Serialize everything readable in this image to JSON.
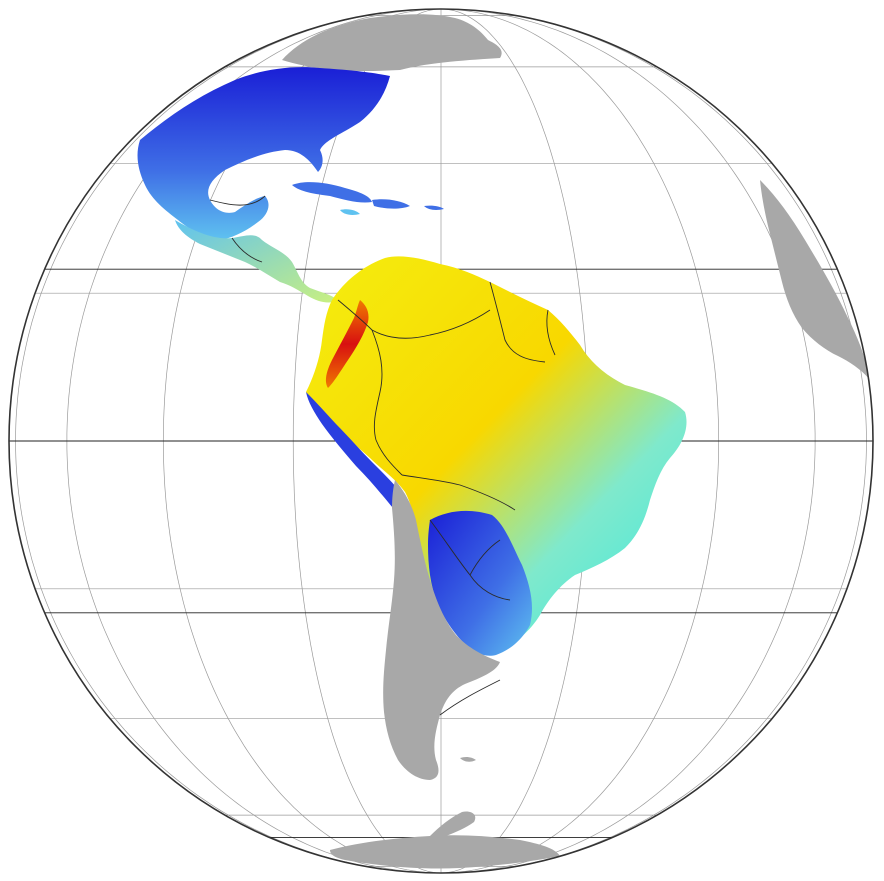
{
  "map": {
    "projection": "orthographic",
    "center": {
      "lon": -60,
      "lat": 0
    },
    "graticule_step_deg": 20,
    "special_parallels_deg": [
      23.44,
      0,
      -23.44,
      -66.56
    ],
    "colors": {
      "ocean": "#ffffff",
      "graticule": "#9a9a9a",
      "special_lines": "#222222",
      "outline": "#333333",
      "land_unmapped": "#a8a8a8",
      "borders": "#2b2b2b"
    },
    "value_colormap": [
      "#1a1fd6",
      "#3f6fe6",
      "#5fc2f0",
      "#37e8e0",
      "#c9f080",
      "#f4ee10",
      "#f8d800",
      "#f07a00",
      "#d81010"
    ],
    "regions_shown": [
      "north-america",
      "central-america",
      "caribbean-islands",
      "south-america",
      "africa-west-coast",
      "antarctic-peninsula",
      "falkland-islands"
    ]
  }
}
